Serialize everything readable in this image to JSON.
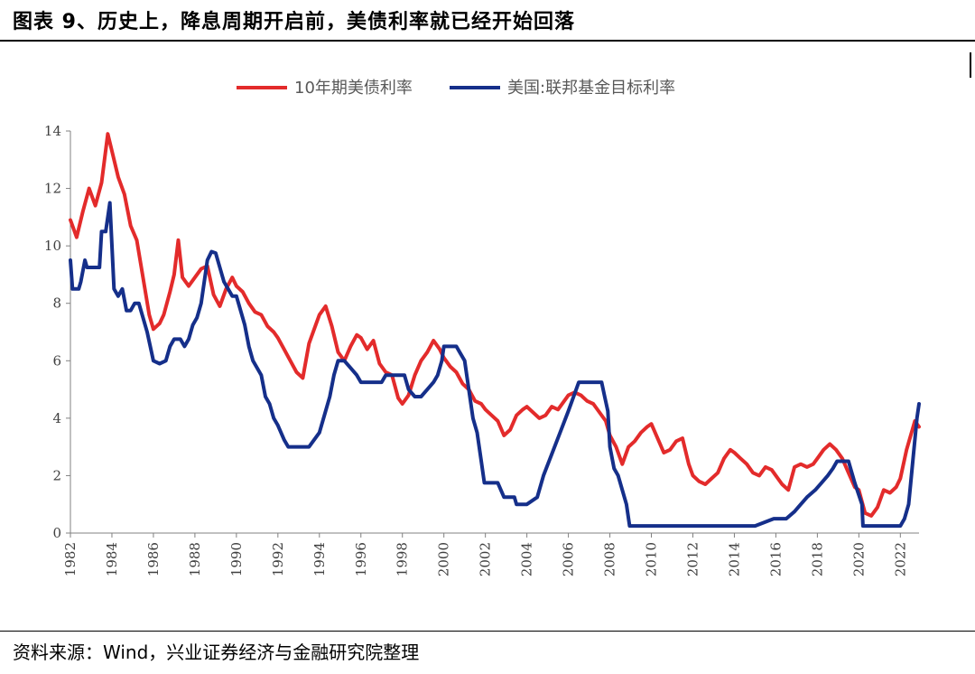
{
  "figure": {
    "title": "图表 9、历史上，降息周期开启前，美债利率就已经开始回落",
    "source": "资料来源：Wind，兴业证券经济与金融研究院整理"
  },
  "colors": {
    "treasury": "#E32B2B",
    "fed": "#152F8A",
    "axis": "#808080"
  },
  "chart_data": {
    "type": "line",
    "title": "",
    "xlabel": "",
    "ylabel": "",
    "xlim": [
      1982,
      2022.9
    ],
    "ylim": [
      0,
      14
    ],
    "yticks": [
      0,
      2,
      4,
      6,
      8,
      10,
      12,
      14
    ],
    "xticks": [
      1982,
      1984,
      1986,
      1988,
      1990,
      1992,
      1994,
      1996,
      1998,
      2000,
      2002,
      2004,
      2006,
      2008,
      2010,
      2012,
      2014,
      2016,
      2018,
      2020,
      2022
    ],
    "grid": false,
    "legend": "top-center",
    "series": [
      {
        "name": "10年期美债利率",
        "color": "#E32B2B",
        "points": [
          [
            1982.0,
            10.9
          ],
          [
            1982.3,
            10.3
          ],
          [
            1982.6,
            11.2
          ],
          [
            1982.9,
            12.0
          ],
          [
            1983.2,
            11.4
          ],
          [
            1983.5,
            12.2
          ],
          [
            1983.8,
            13.9
          ],
          [
            1984.0,
            13.3
          ],
          [
            1984.3,
            12.4
          ],
          [
            1984.6,
            11.8
          ],
          [
            1984.9,
            10.7
          ],
          [
            1985.2,
            10.2
          ],
          [
            1985.5,
            8.9
          ],
          [
            1985.8,
            7.6
          ],
          [
            1986.0,
            7.1
          ],
          [
            1986.3,
            7.3
          ],
          [
            1986.5,
            7.6
          ],
          [
            1986.8,
            8.4
          ],
          [
            1987.0,
            9.0
          ],
          [
            1987.2,
            10.2
          ],
          [
            1987.4,
            8.9
          ],
          [
            1987.7,
            8.6
          ],
          [
            1988.0,
            8.9
          ],
          [
            1988.3,
            9.2
          ],
          [
            1988.6,
            9.3
          ],
          [
            1988.9,
            8.3
          ],
          [
            1989.2,
            7.9
          ],
          [
            1989.5,
            8.5
          ],
          [
            1989.8,
            8.9
          ],
          [
            1990.0,
            8.6
          ],
          [
            1990.3,
            8.4
          ],
          [
            1990.6,
            8.0
          ],
          [
            1990.9,
            7.7
          ],
          [
            1991.2,
            7.6
          ],
          [
            1991.5,
            7.2
          ],
          [
            1991.8,
            7.0
          ],
          [
            1992.0,
            6.8
          ],
          [
            1992.3,
            6.4
          ],
          [
            1992.6,
            6.0
          ],
          [
            1992.9,
            5.6
          ],
          [
            1993.2,
            5.4
          ],
          [
            1993.5,
            6.6
          ],
          [
            1993.8,
            7.2
          ],
          [
            1994.0,
            7.6
          ],
          [
            1994.3,
            7.9
          ],
          [
            1994.6,
            7.2
          ],
          [
            1994.9,
            6.3
          ],
          [
            1995.2,
            6.0
          ],
          [
            1995.5,
            6.5
          ],
          [
            1995.8,
            6.9
          ],
          [
            1996.0,
            6.8
          ],
          [
            1996.3,
            6.4
          ],
          [
            1996.6,
            6.7
          ],
          [
            1996.9,
            5.9
          ],
          [
            1997.2,
            5.6
          ],
          [
            1997.5,
            5.5
          ],
          [
            1997.8,
            4.7
          ],
          [
            1998.0,
            4.5
          ],
          [
            1998.3,
            4.8
          ],
          [
            1998.6,
            5.5
          ],
          [
            1998.9,
            6.0
          ],
          [
            1999.2,
            6.3
          ],
          [
            1999.5,
            6.7
          ],
          [
            1999.8,
            6.4
          ],
          [
            2000.0,
            6.1
          ],
          [
            2000.3,
            5.8
          ],
          [
            2000.6,
            5.6
          ],
          [
            2000.9,
            5.2
          ],
          [
            2001.2,
            5.0
          ],
          [
            2001.5,
            4.6
          ],
          [
            2001.8,
            4.5
          ],
          [
            2002.0,
            4.3
          ],
          [
            2002.3,
            4.1
          ],
          [
            2002.6,
            3.9
          ],
          [
            2002.9,
            3.4
          ],
          [
            2003.2,
            3.6
          ],
          [
            2003.5,
            4.1
          ],
          [
            2003.8,
            4.3
          ],
          [
            2004.0,
            4.4
          ],
          [
            2004.3,
            4.2
          ],
          [
            2004.6,
            4.0
          ],
          [
            2004.9,
            4.1
          ],
          [
            2005.2,
            4.4
          ],
          [
            2005.5,
            4.3
          ],
          [
            2005.8,
            4.6
          ],
          [
            2006.0,
            4.8
          ],
          [
            2006.3,
            4.9
          ],
          [
            2006.6,
            4.8
          ],
          [
            2006.9,
            4.6
          ],
          [
            2007.2,
            4.5
          ],
          [
            2007.5,
            4.2
          ],
          [
            2007.8,
            3.9
          ],
          [
            2008.0,
            3.4
          ],
          [
            2008.3,
            3.0
          ],
          [
            2008.6,
            2.4
          ],
          [
            2008.9,
            3.0
          ],
          [
            2009.2,
            3.2
          ],
          [
            2009.5,
            3.5
          ],
          [
            2009.8,
            3.7
          ],
          [
            2010.0,
            3.8
          ],
          [
            2010.3,
            3.3
          ],
          [
            2010.6,
            2.8
          ],
          [
            2010.9,
            2.9
          ],
          [
            2011.2,
            3.2
          ],
          [
            2011.5,
            3.3
          ],
          [
            2011.8,
            2.4
          ],
          [
            2012.0,
            2.0
          ],
          [
            2012.3,
            1.8
          ],
          [
            2012.6,
            1.7
          ],
          [
            2012.9,
            1.9
          ],
          [
            2013.2,
            2.1
          ],
          [
            2013.5,
            2.6
          ],
          [
            2013.8,
            2.9
          ],
          [
            2014.0,
            2.8
          ],
          [
            2014.3,
            2.6
          ],
          [
            2014.6,
            2.4
          ],
          [
            2014.9,
            2.1
          ],
          [
            2015.2,
            2.0
          ],
          [
            2015.5,
            2.3
          ],
          [
            2015.8,
            2.2
          ],
          [
            2016.0,
            2.0
          ],
          [
            2016.3,
            1.7
          ],
          [
            2016.6,
            1.5
          ],
          [
            2016.9,
            2.3
          ],
          [
            2017.2,
            2.4
          ],
          [
            2017.5,
            2.3
          ],
          [
            2017.8,
            2.4
          ],
          [
            2018.0,
            2.6
          ],
          [
            2018.3,
            2.9
          ],
          [
            2018.6,
            3.1
          ],
          [
            2018.9,
            2.9
          ],
          [
            2019.2,
            2.6
          ],
          [
            2019.5,
            2.1
          ],
          [
            2019.8,
            1.6
          ],
          [
            2020.0,
            1.5
          ],
          [
            2020.3,
            0.7
          ],
          [
            2020.6,
            0.6
          ],
          [
            2020.9,
            0.9
          ],
          [
            2021.2,
            1.5
          ],
          [
            2021.5,
            1.4
          ],
          [
            2021.8,
            1.6
          ],
          [
            2022.0,
            1.9
          ],
          [
            2022.3,
            2.9
          ],
          [
            2022.5,
            3.4
          ],
          [
            2022.7,
            3.9
          ],
          [
            2022.9,
            3.7
          ]
        ]
      },
      {
        "name": "美国:联邦基金目标利率",
        "color": "#152F8A",
        "points": [
          [
            1982.0,
            9.5
          ],
          [
            1982.1,
            8.5
          ],
          [
            1982.4,
            8.5
          ],
          [
            1982.5,
            8.75
          ],
          [
            1982.7,
            9.5
          ],
          [
            1982.8,
            9.25
          ],
          [
            1983.4,
            9.25
          ],
          [
            1983.5,
            10.5
          ],
          [
            1983.7,
            10.5
          ],
          [
            1983.9,
            11.5
          ],
          [
            1984.0,
            10.0
          ],
          [
            1984.1,
            8.5
          ],
          [
            1984.3,
            8.25
          ],
          [
            1984.5,
            8.5
          ],
          [
            1984.7,
            7.75
          ],
          [
            1984.9,
            7.75
          ],
          [
            1985.1,
            8.0
          ],
          [
            1985.3,
            8.0
          ],
          [
            1985.5,
            7.5
          ],
          [
            1985.7,
            7.0
          ],
          [
            1986.0,
            6.0
          ],
          [
            1986.3,
            5.9
          ],
          [
            1986.6,
            6.0
          ],
          [
            1986.8,
            6.5
          ],
          [
            1987.0,
            6.75
          ],
          [
            1987.3,
            6.75
          ],
          [
            1987.5,
            6.5
          ],
          [
            1987.7,
            6.75
          ],
          [
            1987.9,
            7.25
          ],
          [
            1988.1,
            7.5
          ],
          [
            1988.3,
            8.0
          ],
          [
            1988.6,
            9.5
          ],
          [
            1988.8,
            9.8
          ],
          [
            1989.0,
            9.75
          ],
          [
            1989.2,
            9.25
          ],
          [
            1989.4,
            8.75
          ],
          [
            1989.6,
            8.5
          ],
          [
            1989.8,
            8.25
          ],
          [
            1990.0,
            8.25
          ],
          [
            1990.2,
            7.75
          ],
          [
            1990.4,
            7.25
          ],
          [
            1990.6,
            6.5
          ],
          [
            1990.8,
            6.0
          ],
          [
            1991.0,
            5.75
          ],
          [
            1991.2,
            5.5
          ],
          [
            1991.4,
            4.75
          ],
          [
            1991.6,
            4.5
          ],
          [
            1991.8,
            4.0
          ],
          [
            1992.0,
            3.75
          ],
          [
            1992.3,
            3.25
          ],
          [
            1992.5,
            3.0
          ],
          [
            1993.0,
            3.0
          ],
          [
            1993.5,
            3.0
          ],
          [
            1994.0,
            3.5
          ],
          [
            1994.3,
            4.25
          ],
          [
            1994.5,
            4.75
          ],
          [
            1994.7,
            5.5
          ],
          [
            1994.9,
            6.0
          ],
          [
            1995.2,
            6.0
          ],
          [
            1995.5,
            5.75
          ],
          [
            1995.8,
            5.5
          ],
          [
            1996.0,
            5.25
          ],
          [
            1996.5,
            5.25
          ],
          [
            1997.0,
            5.25
          ],
          [
            1997.2,
            5.5
          ],
          [
            1998.0,
            5.5
          ],
          [
            1998.1,
            5.5
          ],
          [
            1998.3,
            5.0
          ],
          [
            1998.6,
            4.75
          ],
          [
            1998.9,
            4.75
          ],
          [
            1999.2,
            5.0
          ],
          [
            1999.5,
            5.25
          ],
          [
            1999.7,
            5.5
          ],
          [
            1999.9,
            6.0
          ],
          [
            2000.0,
            6.5
          ],
          [
            2000.3,
            6.5
          ],
          [
            2000.6,
            6.5
          ],
          [
            2001.0,
            6.0
          ],
          [
            2001.2,
            5.0
          ],
          [
            2001.4,
            4.0
          ],
          [
            2001.6,
            3.5
          ],
          [
            2001.8,
            2.5
          ],
          [
            2001.95,
            1.75
          ],
          [
            2002.3,
            1.75
          ],
          [
            2002.6,
            1.75
          ],
          [
            2002.9,
            1.25
          ],
          [
            2003.4,
            1.25
          ],
          [
            2003.5,
            1.0
          ],
          [
            2004.0,
            1.0
          ],
          [
            2004.5,
            1.25
          ],
          [
            2004.8,
            2.0
          ],
          [
            2005.2,
            2.75
          ],
          [
            2005.6,
            3.5
          ],
          [
            2006.0,
            4.25
          ],
          [
            2006.5,
            5.25
          ],
          [
            2007.0,
            5.25
          ],
          [
            2007.6,
            5.25
          ],
          [
            2007.75,
            4.75
          ],
          [
            2007.9,
            4.25
          ],
          [
            2008.0,
            3.0
          ],
          [
            2008.2,
            2.25
          ],
          [
            2008.4,
            2.0
          ],
          [
            2008.8,
            1.0
          ],
          [
            2008.95,
            0.25
          ],
          [
            2009.5,
            0.25
          ],
          [
            2012.0,
            0.25
          ],
          [
            2015.0,
            0.25
          ],
          [
            2015.9,
            0.5
          ],
          [
            2016.5,
            0.5
          ],
          [
            2016.9,
            0.75
          ],
          [
            2017.2,
            1.0
          ],
          [
            2017.5,
            1.25
          ],
          [
            2017.9,
            1.5
          ],
          [
            2018.2,
            1.75
          ],
          [
            2018.5,
            2.0
          ],
          [
            2018.75,
            2.25
          ],
          [
            2018.95,
            2.5
          ],
          [
            2019.5,
            2.5
          ],
          [
            2019.6,
            2.25
          ],
          [
            2019.7,
            2.0
          ],
          [
            2019.8,
            1.75
          ],
          [
            2020.15,
            1.0
          ],
          [
            2020.2,
            0.25
          ],
          [
            2021.0,
            0.25
          ],
          [
            2022.0,
            0.25
          ],
          [
            2022.2,
            0.5
          ],
          [
            2022.4,
            1.0
          ],
          [
            2022.5,
            1.75
          ],
          [
            2022.6,
            2.5
          ],
          [
            2022.7,
            3.25
          ],
          [
            2022.8,
            4.0
          ],
          [
            2022.9,
            4.5
          ]
        ]
      }
    ]
  }
}
